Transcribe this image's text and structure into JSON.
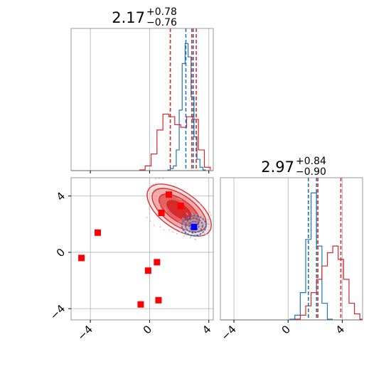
{
  "chart_data": [
    {
      "panel": "top-left marginal histogram (parameter 1)",
      "type": "line",
      "title": {
        "value": "2.17",
        "upper": "+0.78",
        "lower": "−0.76"
      },
      "xlim": [
        -5.3,
        4.3
      ],
      "grid": true,
      "series": [
        {
          "color": "#1f77b4",
          "x": [
            1.3,
            1.5,
            1.7,
            1.9,
            2.1,
            2.3,
            2.5,
            2.7,
            2.9,
            3.1,
            3.3,
            3.5,
            3.7
          ],
          "y": [
            0.0,
            0.01,
            0.03,
            0.15,
            0.45,
            0.8,
            0.95,
            0.85,
            0.55,
            0.25,
            0.08,
            0.02,
            0.0
          ]
        },
        {
          "color": "#d62728",
          "x": [
            -0.5,
            -0.1,
            0.3,
            0.7,
            1.1,
            1.5,
            1.9,
            2.3,
            2.7,
            3.1,
            3.5,
            3.9
          ],
          "y": [
            0.0,
            0.03,
            0.12,
            0.3,
            0.42,
            0.4,
            0.34,
            0.32,
            0.4,
            0.38,
            0.15,
            0.02
          ]
        }
      ],
      "quantile_lines": [
        {
          "color": "#1f77b4",
          "values": [
            2.45,
            2.95
          ]
        },
        {
          "color": "#d62728",
          "values": [
            1.4,
            2.85,
            3.15
          ]
        }
      ]
    },
    {
      "panel": "bottom-right marginal histogram (parameter 2)",
      "type": "line",
      "title": {
        "value": "2.97",
        "upper": "+0.84",
        "lower": "−0.90"
      },
      "xlim": [
        -5.0,
        5.5
      ],
      "xticks": [
        "−4",
        "0",
        "4"
      ],
      "grid": true,
      "series": [
        {
          "color": "#1f77b4",
          "x": [
            0.3,
            0.7,
            1.1,
            1.5,
            1.9,
            2.3,
            2.7,
            3.1
          ],
          "y": [
            0.0,
            0.03,
            0.2,
            0.6,
            0.95,
            0.55,
            0.12,
            0.0
          ]
        },
        {
          "color": "#d62728",
          "x": [
            0.7,
            1.1,
            1.5,
            1.9,
            2.3,
            2.7,
            3.1,
            3.5,
            3.9,
            4.3,
            4.7,
            5.1,
            5.5
          ],
          "y": [
            0.0,
            0.03,
            0.1,
            0.2,
            0.3,
            0.4,
            0.5,
            0.55,
            0.45,
            0.3,
            0.12,
            0.04,
            0.0
          ]
        }
      ],
      "quantile_lines": [
        {
          "color": "#1f77b4",
          "values": [
            1.5,
            2.1
          ]
        },
        {
          "color": "#d62728",
          "values": [
            2.2,
            3.9
          ]
        }
      ]
    },
    {
      "panel": "bottom-left 2D contour / scatter",
      "type": "scatter",
      "xlim": [
        -5.3,
        4.3
      ],
      "ylim": [
        -4.8,
        5.3
      ],
      "xticks": [
        "−4",
        "0",
        "4"
      ],
      "yticks": [
        "−4",
        "0",
        "4"
      ],
      "grid": true,
      "red_points": [
        [
          -4.6,
          -0.4
        ],
        [
          -3.5,
          1.4
        ],
        [
          -0.6,
          -3.7
        ],
        [
          -0.1,
          -1.3
        ],
        [
          0.5,
          -0.7
        ],
        [
          0.6,
          -3.4
        ],
        [
          0.8,
          2.8
        ],
        [
          1.3,
          4.1
        ],
        [
          2.1,
          3.3
        ]
      ],
      "blue_points": [
        [
          3.0,
          1.8
        ]
      ],
      "red_contour_center": [
        2.0,
        3.0
      ],
      "blue_contour_center": [
        3.0,
        1.9
      ]
    }
  ]
}
